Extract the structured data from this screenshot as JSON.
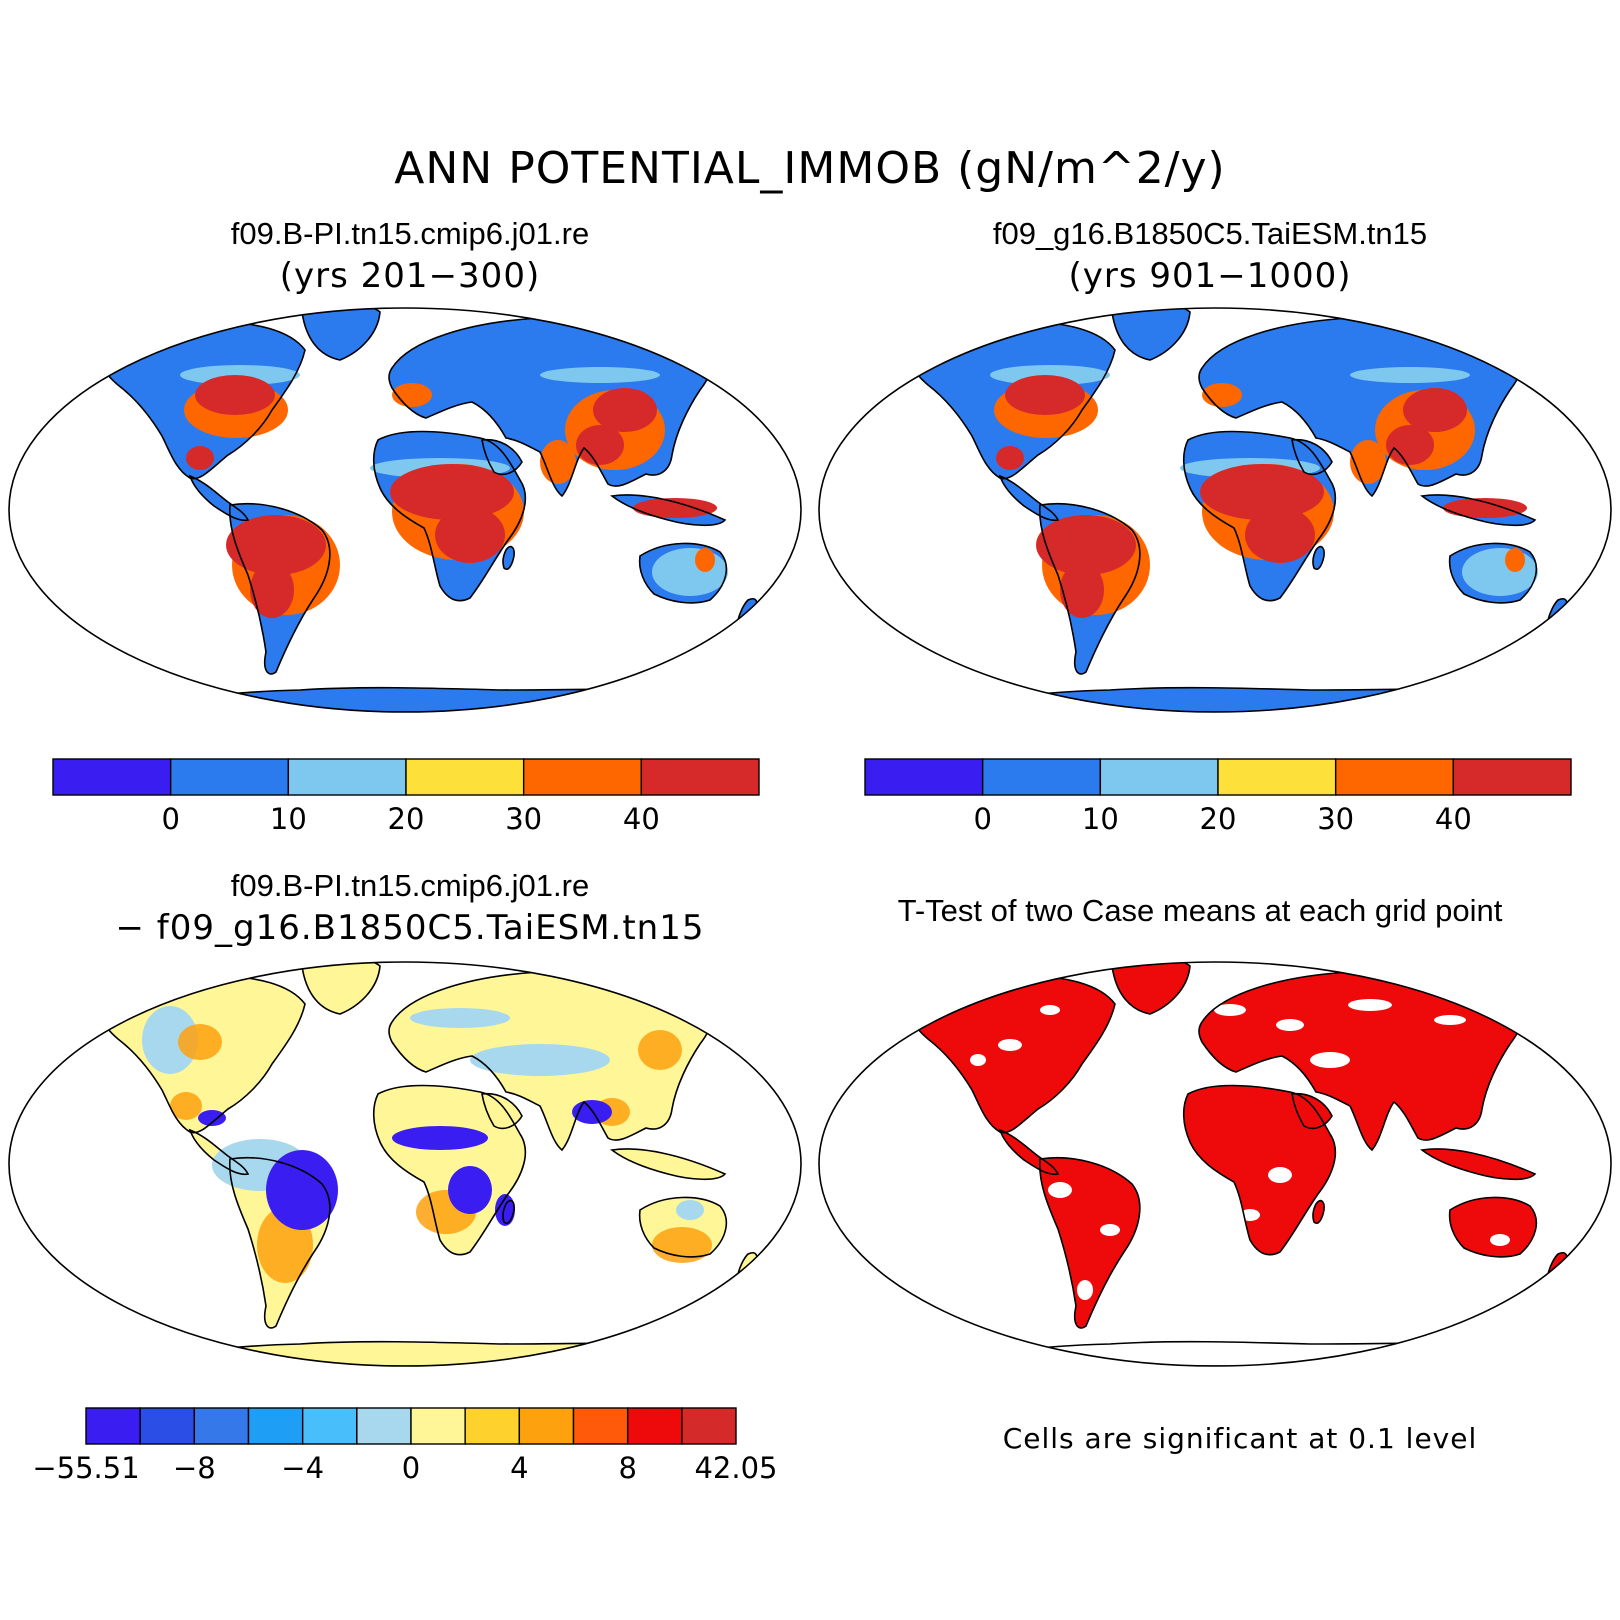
{
  "title": "ANN POTENTIAL_IMMOB (gN/m^2/y)",
  "panels": {
    "top_left": {
      "case": "f09.B-PI.tn15.cmip6.j01.re",
      "years": "(yrs 201−300)"
    },
    "top_right": {
      "case": "f09_g16.B1850C5.TaiESM.tn15",
      "years": "(yrs 901−1000)"
    },
    "bottom_left": {
      "line1": "f09.B-PI.tn15.cmip6.j01.re",
      "line2": "− f09_g16.B1850C5.TaiESM.tn15"
    },
    "bottom_right": {
      "title": "T-Test of two Case means at each grid point",
      "note": "Cells are significant at 0.1 level"
    }
  },
  "colorbars": {
    "abs": {
      "colors": [
        "#3a1df0",
        "#2b7bef",
        "#7ec8ef",
        "#fde13a",
        "#fe6600",
        "#d62a2a"
      ],
      "labels": [
        "0",
        "10",
        "20",
        "30",
        "40"
      ]
    },
    "diff": {
      "colors": [
        "#3a1df0",
        "#2b4fe6",
        "#3478ea",
        "#1e9ff5",
        "#48befa",
        "#a8d8ee",
        "#fff797",
        "#fed12d",
        "#fea10e",
        "#fe5a0a",
        "#ee0a0a",
        "#d42a2a"
      ],
      "labels": [
        "−55.51",
        "−8",
        "−4",
        "0",
        "4",
        "8",
        "42.05"
      ]
    }
  },
  "map_fill_colors": {
    "land_abs": "#2b7bef",
    "hot_abs": "#d62a2a",
    "warm_abs": "#fe6600",
    "land_diff": "#fff797",
    "ttest_sig": "#ee0a0a"
  }
}
